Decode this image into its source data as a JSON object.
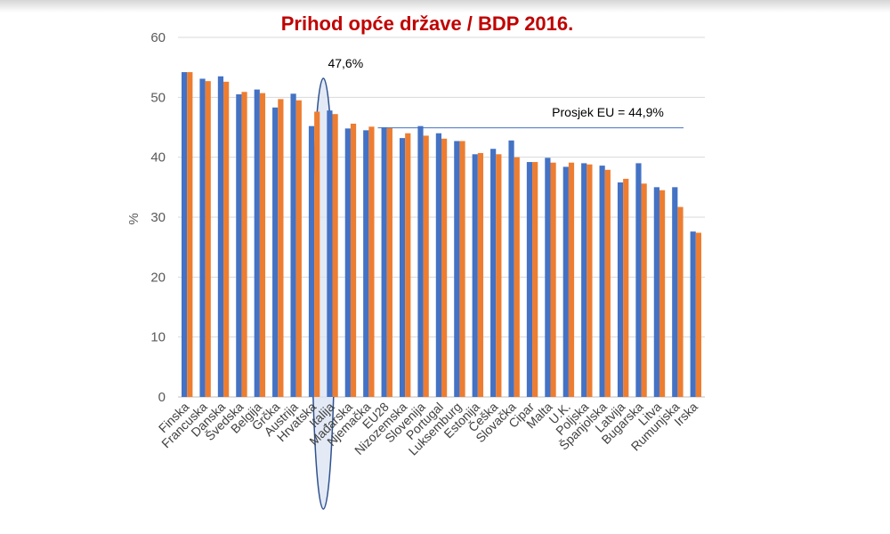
{
  "chart_data": {
    "type": "bar",
    "title": "Prihod opće države / BDP 2016.",
    "ylabel": "%",
    "ylim": [
      0,
      60
    ],
    "yticks": [
      0,
      10,
      20,
      30,
      40,
      50,
      60
    ],
    "grid": true,
    "categories": [
      "Finska",
      "Francuska",
      "Danska",
      "Švedska",
      "Belgija",
      "Grčka",
      "Austrija",
      "Hrvatska",
      "Italija",
      "Mađarska",
      "Njemačka",
      "EU28",
      "Nizozemska",
      "Slovenija",
      "Portugal",
      "Luksemburg",
      "Estonija",
      "Češka",
      "Slovačka",
      "Cipar",
      "Malta",
      "U.K.",
      "Poljska",
      "Španjolska",
      "Latvija",
      "Bugarska",
      "Litva",
      "Rumunjska",
      "Irska"
    ],
    "series": [
      {
        "values": [
          54.2,
          53.1,
          53.5,
          50.5,
          51.3,
          48.3,
          50.6,
          45.2,
          47.8,
          44.8,
          44.5,
          45.0,
          43.2,
          45.2,
          44.0,
          42.7,
          40.5,
          41.4,
          42.8,
          39.2,
          39.9,
          38.4,
          39.0,
          38.6,
          35.8,
          39.0,
          35.0,
          35.0,
          27.6
        ]
      },
      {
        "values": [
          54.2,
          52.7,
          52.6,
          50.9,
          50.7,
          49.7,
          49.5,
          47.6,
          47.2,
          45.6,
          45.1,
          44.9,
          44.0,
          43.6,
          43.1,
          42.7,
          40.7,
          40.5,
          40.0,
          39.2,
          39.1,
          39.1,
          38.8,
          37.9,
          36.4,
          35.6,
          34.5,
          31.7,
          27.4
        ]
      }
    ],
    "annotations": {
      "highlight_label": "47,6%",
      "highlight_category": "Hrvatska",
      "eu_average_label": "Prosjek EU = 44,9%",
      "eu_average_value": 44.9
    },
    "colors": {
      "series1": "#4472c4",
      "series2": "#ed7d31",
      "highlight_fill": "#dae3f3",
      "highlight_stroke": "#2f528f",
      "title": "#c00000"
    }
  }
}
